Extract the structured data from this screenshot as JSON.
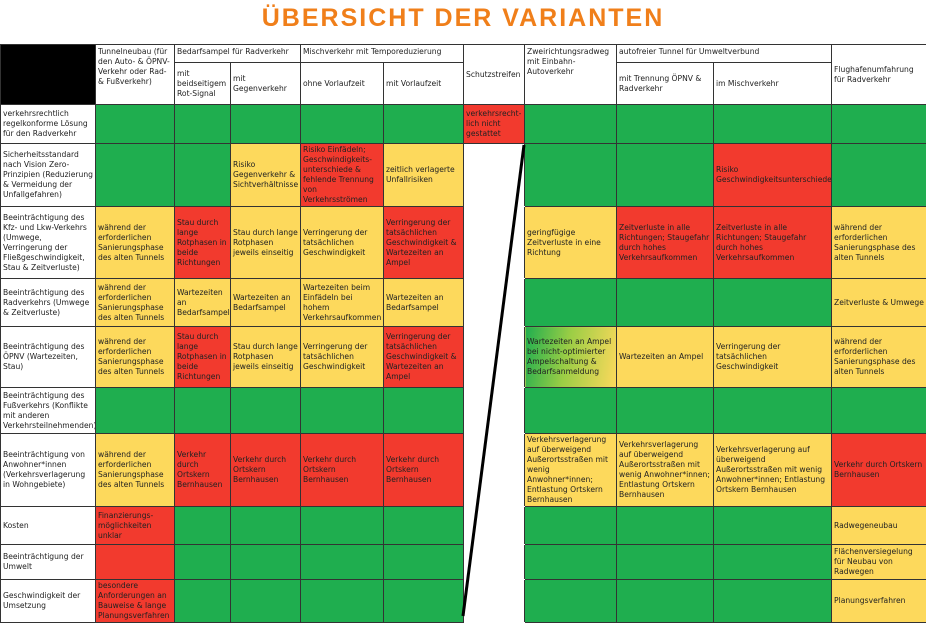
{
  "title": "ÜBERSICHT DER VARIANTEN",
  "header": {
    "corner": {},
    "tunnel": "Tunnelneubau (für den Auto- & ÖPNV-Verkehr oder Rad- & Fußverkehr)",
    "bedarfsampel": {
      "group": "Bedarfsampel für Radverkehr",
      "subs": [
        "mit beidseitigem Rot-Signal",
        "mit Gegenverkehr"
      ]
    },
    "mischverkehr": {
      "group": "Mischverkehr mit Temporeduzierung",
      "subs": [
        "ohne Vorlaufzeit",
        "mit Vorlaufzeit"
      ]
    },
    "schutzstreifen": "Schutzstreifen",
    "zweirichtung": "Zweirichtungsradweg mit Einbahn-Autoverkehr",
    "autofrei": {
      "group": "autofreier Tunnel für Umweltverbund",
      "subs": [
        "mit Trennung ÖPNV & Radverkehr",
        "im Mischverkehr"
      ]
    },
    "flughafen": "Flughafenumfahrung für Radverkehr"
  },
  "rows": [
    {
      "label": "verkehrsrechtlich regelkonforme Lösung für den Radverkehr",
      "cells": [
        {
          "status": "g"
        },
        {
          "status": "g"
        },
        {
          "status": "g"
        },
        {
          "status": "g"
        },
        {
          "status": "g"
        },
        {
          "status": "r",
          "text": "verkehrsrecht-lich nicht gestattet"
        },
        {
          "status": "g"
        },
        {
          "status": "g"
        },
        {
          "status": "g"
        },
        {
          "status": "g"
        }
      ]
    },
    {
      "label": "Sicherheitsstandard nach Vision Zero-Prinzipien (Reduzierung & Vermeidung der Unfallgefahren)",
      "cells": [
        {
          "status": "g"
        },
        {
          "status": "g"
        },
        {
          "status": "y",
          "text": "Risiko Gegenverkehr & Sichtverhältnisse"
        },
        {
          "status": "r",
          "text": "Risiko Einfädeln; Geschwindigkeits-unterschiede & fehlende Trennung von Verkehrsströmen"
        },
        {
          "status": "y",
          "text": "zeitlich verlagerte Unfallrisiken"
        },
        {
          "status": "w"
        },
        {
          "status": "g"
        },
        {
          "status": "g"
        },
        {
          "status": "r",
          "text": "Risiko Geschwindigkeitsunterschiede"
        },
        {
          "status": "g"
        }
      ]
    },
    {
      "label": "Beeinträchtigung des Kfz- und Lkw-Verkehrs (Umwege, Verringerung der Fließgeschwindigkeit, Stau & Zeitverluste)",
      "cells": [
        {
          "status": "y",
          "text": "während der erforderlichen Sanierungsphase des alten Tunnels"
        },
        {
          "status": "r",
          "text": "Stau durch lange Rotphasen in beide Richtungen"
        },
        {
          "status": "y",
          "text": "Stau durch lange Rotphasen jeweils einseitig"
        },
        {
          "status": "y",
          "text": "Verringerung der tatsächlichen Geschwindigkeit"
        },
        {
          "status": "r",
          "text": "Verringerung der tatsächlichen Geschwindigkeit & Wartezeiten an Ampel"
        },
        {
          "status": "w"
        },
        {
          "status": "y",
          "text": "geringfügige Zeitverluste in eine Richtung"
        },
        {
          "status": "r",
          "text": "Zeitverluste in alle Richtungen; Staugefahr durch hohes Verkehrsaufkommen"
        },
        {
          "status": "r",
          "text": "Zeitverluste in alle Richtungen; Staugefahr durch hohes Verkehrsaufkommen"
        },
        {
          "status": "y",
          "text": "während der erforderlichen Sanierungsphase des alten Tunnels"
        }
      ]
    },
    {
      "label": "Beeinträchtigung des Radverkehrs (Umwege & Zeitverluste)",
      "cells": [
        {
          "status": "y",
          "text": "während der erforderlichen Sanierungsphase des alten Tunnels"
        },
        {
          "status": "y",
          "text": "Wartezeiten an Bedarfsampel"
        },
        {
          "status": "y",
          "text": "Wartezeiten an Bedarfsampel"
        },
        {
          "status": "y",
          "text": "Wartezeiten beim Einfädeln bei hohem Verkehrsaufkommen"
        },
        {
          "status": "y",
          "text": "Wartezeiten an Bedarfsampel"
        },
        {
          "status": "w"
        },
        {
          "status": "g"
        },
        {
          "status": "g"
        },
        {
          "status": "g"
        },
        {
          "status": "y",
          "text": "Zeitverluste & Umwege"
        }
      ]
    },
    {
      "label": "Beeinträchtigung des ÖPNV (Wartezeiten, Stau)",
      "cells": [
        {
          "status": "y",
          "text": "während der erforderlichen Sanierungsphase des alten Tunnels"
        },
        {
          "status": "r",
          "text": "Stau durch lange Rotphasen in beide Richtungen"
        },
        {
          "status": "y",
          "text": "Stau durch lange Rotphasen jeweils einseitig"
        },
        {
          "status": "y",
          "text": "Verringerung der tatsächlichen Geschwindigkeit"
        },
        {
          "status": "r",
          "text": "Verringerung der tatsächlichen Geschwindigkeit & Wartezeiten an Ampel"
        },
        {
          "status": "w"
        },
        {
          "status": "yg",
          "text": "Wartezeiten an Ampel bei nicht-optimierter Ampelschaltung & Bedarfsanmeldung"
        },
        {
          "status": "y",
          "text": "Wartezeiten an Ampel"
        },
        {
          "status": "y",
          "text": "Verringerung der tatsächlichen Geschwindigkeit"
        },
        {
          "status": "y",
          "text": "während der erforderlichen Sanierungsphase des alten Tunnels"
        }
      ]
    },
    {
      "label": "Beeinträchtigung des Fußverkehrs (Konflikte mit anderen Verkehrsteilnehmenden)",
      "cells": [
        {
          "status": "g"
        },
        {
          "status": "g"
        },
        {
          "status": "g"
        },
        {
          "status": "g"
        },
        {
          "status": "g"
        },
        {
          "status": "w"
        },
        {
          "status": "g"
        },
        {
          "status": "g"
        },
        {
          "status": "g"
        },
        {
          "status": "g"
        }
      ]
    },
    {
      "label": "Beeinträchtigung von Anwohner*innen (Verkehrsverlagerung in Wohngebiete)",
      "cells": [
        {
          "status": "y",
          "text": "während der erforderlichen Sanierungsphase des alten Tunnels"
        },
        {
          "status": "r",
          "text": "Verkehr durch Ortskern Bernhausen"
        },
        {
          "status": "r",
          "text": "Verkehr durch Ortskern Bernhausen"
        },
        {
          "status": "r",
          "text": "Verkehr durch Ortskern Bernhausen"
        },
        {
          "status": "r",
          "text": "Verkehr durch Ortskern Bernhausen"
        },
        {
          "status": "w"
        },
        {
          "status": "y",
          "text": "Verkehrsverlagerung auf überweigend Außerortsstraßen mit wenig Anwohner*innen; Entlastung Ortskern Bernhausen"
        },
        {
          "status": "y",
          "text": "Verkehrsverlagerung auf überweigend Außerortsstraßen mit wenig Anwohner*innen; Entlastung Ortskern Bernhausen"
        },
        {
          "status": "y",
          "text": "Verkehrsverlagerung auf überweigend Außerortsstraßen mit wenig Anwohner*innen; Entlastung Ortskern Bernhausen"
        },
        {
          "status": "r",
          "text": "Verkehr durch Ortskern Bernhausen"
        }
      ]
    },
    {
      "label": "Kosten",
      "cells": [
        {
          "status": "r",
          "text": "Finanzierungs-möglichkeiten unklar"
        },
        {
          "status": "g"
        },
        {
          "status": "g"
        },
        {
          "status": "g"
        },
        {
          "status": "g"
        },
        {
          "status": "w"
        },
        {
          "status": "g"
        },
        {
          "status": "g"
        },
        {
          "status": "g"
        },
        {
          "status": "y",
          "text": "Radwegeneubau"
        }
      ]
    },
    {
      "label": "Beeinträchtigung der Umwelt",
      "cells": [
        {
          "status": "r"
        },
        {
          "status": "g"
        },
        {
          "status": "g"
        },
        {
          "status": "g"
        },
        {
          "status": "g"
        },
        {
          "status": "w"
        },
        {
          "status": "g"
        },
        {
          "status": "g"
        },
        {
          "status": "g"
        },
        {
          "status": "y",
          "text": "Flächenversiegelung für Neubau von Radwegen"
        }
      ]
    },
    {
      "label": "Geschwindigkeit der Umsetzung",
      "cells": [
        {
          "status": "r",
          "text": "besondere Anforderungen an Bauweise & lange Planungsverfahren"
        },
        {
          "status": "g"
        },
        {
          "status": "g"
        },
        {
          "status": "g"
        },
        {
          "status": "g"
        },
        {
          "status": "w"
        },
        {
          "status": "g"
        },
        {
          "status": "g"
        },
        {
          "status": "g"
        },
        {
          "status": "y",
          "text": "Planungsverfahren"
        }
      ]
    }
  ]
}
